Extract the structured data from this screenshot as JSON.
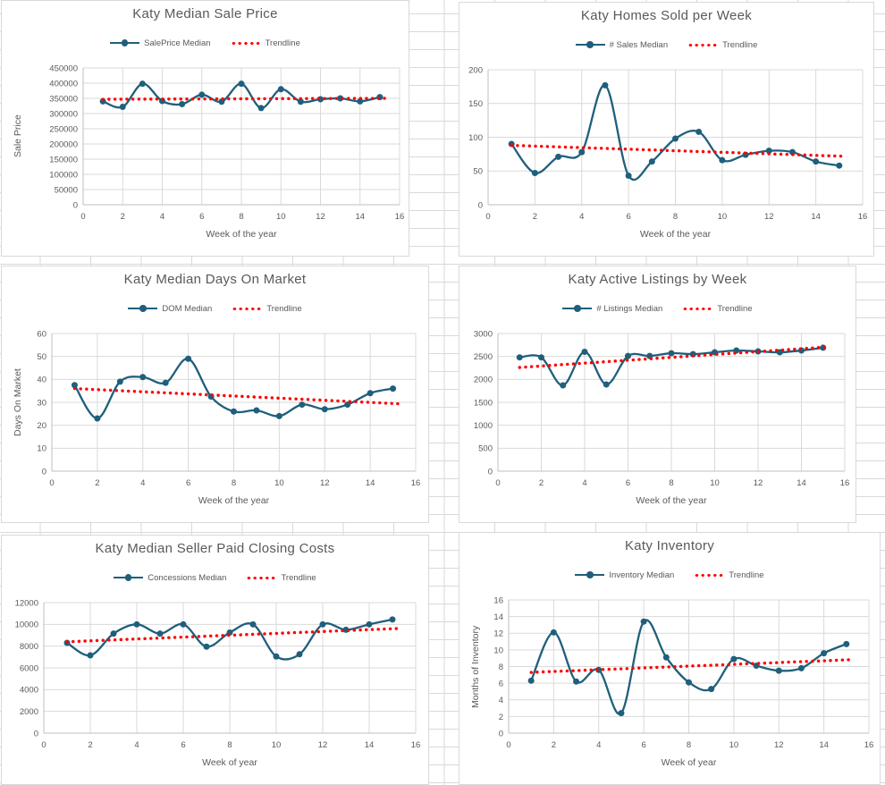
{
  "colors": {
    "series": "#1F5F7C",
    "trendline": "#FF0000",
    "gridline": "#D9D9D9",
    "axis_line": "#BFBFBF",
    "axis_text": "#595959",
    "title_text": "#595959",
    "chart_border": "#D9D9D9",
    "background": "#FFFFFF"
  },
  "chart_data": [
    {
      "type": "line",
      "title": "Katy Median Sale Price",
      "xlabel": "Week of the year",
      "ylabel": "Sale Price",
      "legend": [
        "SalePrice Median",
        "Trendline"
      ],
      "x": [
        1,
        2,
        3,
        4,
        5,
        6,
        7,
        8,
        9,
        10,
        11,
        12,
        13,
        14,
        15
      ],
      "series": [
        {
          "name": "SalePrice Median",
          "values": [
            340000,
            322000,
            398000,
            341000,
            331000,
            362000,
            339000,
            398000,
            318000,
            380000,
            339000,
            347000,
            350000,
            340000,
            354000
          ]
        },
        {
          "name": "Trendline",
          "trend_start": 347000,
          "trend_end": 350000
        }
      ],
      "xlim": [
        0,
        16
      ],
      "xstep": 2,
      "ylim": [
        0,
        450000
      ],
      "ystep": 50000,
      "grid": true,
      "legend_position": "top",
      "line_smooth": true
    },
    {
      "type": "line",
      "title": "Katy Homes Sold per Week",
      "xlabel": "Week of the year",
      "ylabel": "",
      "legend": [
        "# Sales Median",
        "Trendline"
      ],
      "x": [
        1,
        2,
        3,
        4,
        5,
        6,
        7,
        8,
        9,
        10,
        11,
        12,
        13,
        14,
        15
      ],
      "series": [
        {
          "name": "# Sales Median",
          "values": [
            90,
            47,
            71,
            78,
            177,
            43,
            64,
            98,
            108,
            66,
            74,
            80,
            78,
            64,
            58
          ]
        },
        {
          "name": "Trendline",
          "trend_start": 88,
          "trend_end": 72
        }
      ],
      "xlim": [
        0,
        16
      ],
      "xstep": 2,
      "ylim": [
        0,
        200
      ],
      "ystep": 50,
      "grid": true,
      "legend_position": "top",
      "line_smooth": true
    },
    {
      "type": "line",
      "title": "Katy Median Days On Market",
      "xlabel": "Week of the year",
      "ylabel": "Days On Market",
      "legend": [
        "DOM Median",
        "Trendline"
      ],
      "x": [
        1,
        2,
        3,
        4,
        5,
        6,
        7,
        8,
        9,
        10,
        11,
        12,
        13,
        14,
        15
      ],
      "series": [
        {
          "name": "DOM Median",
          "values": [
            37.5,
            23,
            39,
            41,
            38.5,
            49,
            32.5,
            26,
            26.5,
            24,
            29,
            27,
            29,
            34,
            36
          ]
        },
        {
          "name": "Trendline",
          "trend_start": 36,
          "trend_end": 29.5
        }
      ],
      "xlim": [
        0,
        16
      ],
      "xstep": 2,
      "ylim": [
        0,
        60
      ],
      "ystep": 10,
      "grid": true,
      "legend_position": "top",
      "line_smooth": true
    },
    {
      "type": "line",
      "title": "Katy Active Listings by Week",
      "xlabel": "Week of the year",
      "ylabel": "",
      "legend": [
        "# Listings Median",
        "Trendline"
      ],
      "x": [
        1,
        2,
        3,
        4,
        5,
        6,
        7,
        8,
        9,
        10,
        11,
        12,
        13,
        14,
        15
      ],
      "series": [
        {
          "name": "# Listings Median",
          "values": [
            2480,
            2480,
            1870,
            2600,
            1890,
            2510,
            2510,
            2570,
            2550,
            2590,
            2630,
            2610,
            2590,
            2630,
            2690
          ]
        },
        {
          "name": "Trendline",
          "trend_start": 2260,
          "trend_end": 2700
        }
      ],
      "xlim": [
        0,
        16
      ],
      "xstep": 2,
      "ylim": [
        0,
        3000
      ],
      "ystep": 500,
      "grid": true,
      "legend_position": "top",
      "line_smooth": true
    },
    {
      "type": "line",
      "title": "Katy Median Seller Paid Closing Costs",
      "xlabel": "Week of year",
      "ylabel": "",
      "legend": [
        "Concessions Median",
        "Trendline"
      ],
      "x": [
        1,
        2,
        3,
        4,
        5,
        6,
        7,
        8,
        9,
        10,
        11,
        12,
        13,
        14,
        15
      ],
      "series": [
        {
          "name": "Concessions Median",
          "values": [
            8300,
            7150,
            9150,
            10000,
            9150,
            10000,
            7950,
            9250,
            10000,
            7050,
            7250,
            10000,
            9500,
            10000,
            10450
          ]
        },
        {
          "name": "Trendline",
          "trend_start": 8400,
          "trend_end": 9600
        }
      ],
      "xlim": [
        0,
        16
      ],
      "xstep": 2,
      "ylim": [
        0,
        12000
      ],
      "ystep": 2000,
      "grid": true,
      "legend_position": "top",
      "line_smooth": true
    },
    {
      "type": "line",
      "title": "Katy Inventory",
      "xlabel": "Week of year",
      "ylabel": "Months of Inventory",
      "legend": [
        "Inventory Median",
        "Trendline"
      ],
      "x": [
        1,
        2,
        3,
        4,
        5,
        6,
        7,
        8,
        9,
        10,
        11,
        12,
        13,
        14,
        15
      ],
      "series": [
        {
          "name": "Inventory Median",
          "values": [
            6.3,
            12.1,
            6.2,
            7.6,
            2.4,
            13.4,
            9.1,
            6.1,
            5.3,
            8.9,
            8.1,
            7.5,
            7.8,
            9.6,
            10.7
          ]
        },
        {
          "name": "Trendline",
          "trend_start": 7.3,
          "trend_end": 8.8
        }
      ],
      "xlim": [
        0,
        16
      ],
      "xstep": 2,
      "ylim": [
        0,
        16
      ],
      "ystep": 2,
      "grid": true,
      "legend_position": "top",
      "line_smooth": true
    }
  ]
}
